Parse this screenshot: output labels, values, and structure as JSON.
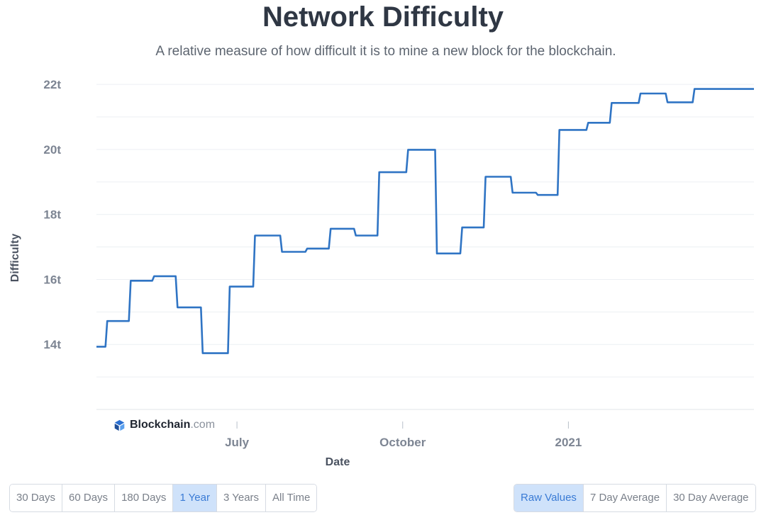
{
  "header": {
    "title": "Network Difficulty",
    "subtitle": "A relative measure of how difficult it is to mine a new block for the blockchain."
  },
  "brand": {
    "name": "Blockchain",
    "tld": ".com"
  },
  "range_buttons": [
    {
      "label": "30 Days",
      "active": false
    },
    {
      "label": "60 Days",
      "active": false
    },
    {
      "label": "180 Days",
      "active": false
    },
    {
      "label": "1 Year",
      "active": true
    },
    {
      "label": "3 Years",
      "active": false
    },
    {
      "label": "All Time",
      "active": false
    }
  ],
  "mode_buttons": [
    {
      "label": "Raw Values",
      "active": true
    },
    {
      "label": "7 Day Average",
      "active": false
    },
    {
      "label": "30 Day Average",
      "active": false
    }
  ],
  "colors": {
    "line": "#2f74c4",
    "grid": "#eceff3",
    "axis_text": "#7d8593",
    "label_text": "#4a5260",
    "active_button": "#cfe2fa"
  },
  "chart_data": {
    "type": "line",
    "title": "Network Difficulty",
    "xlabel": "Date",
    "ylabel": "Difficulty",
    "ylim": [
      12.0,
      22.2
    ],
    "yticks": [
      14,
      16,
      18,
      20,
      22
    ],
    "ytick_labels": [
      "14t",
      "16t",
      "18t",
      "20t",
      "22t"
    ],
    "xlim": [
      "2020-04-14",
      "2021-04-14"
    ],
    "xticks": [
      "2020-07-01",
      "2020-10-01",
      "2021-01-01"
    ],
    "xtick_labels": [
      "July",
      "October",
      "2021"
    ],
    "grid": true,
    "series": [
      {
        "x": [
          "2020-04-14",
          "2020-04-19",
          "2020-04-20",
          "2020-05-02",
          "2020-05-03",
          "2020-05-15",
          "2020-05-16",
          "2020-05-28",
          "2020-05-29",
          "2020-06-11",
          "2020-06-12",
          "2020-06-26",
          "2020-06-27",
          "2020-07-10",
          "2020-07-11",
          "2020-07-25",
          "2020-07-26",
          "2020-08-08",
          "2020-08-09",
          "2020-08-21",
          "2020-08-22",
          "2020-09-04",
          "2020-09-05",
          "2020-09-17",
          "2020-09-18",
          "2020-10-03",
          "2020-10-04",
          "2020-10-19",
          "2020-10-20",
          "2020-11-02",
          "2020-11-03",
          "2020-11-15",
          "2020-11-16",
          "2020-11-30",
          "2020-12-01",
          "2020-12-14",
          "2020-12-15",
          "2020-12-26",
          "2020-12-27",
          "2021-01-11",
          "2021-01-12",
          "2021-01-24",
          "2021-01-25",
          "2021-02-09",
          "2021-02-10",
          "2021-02-24",
          "2021-02-25",
          "2021-03-11",
          "2021-03-12",
          "2021-04-14"
        ],
        "y": [
          13.93,
          13.93,
          14.72,
          14.72,
          15.96,
          15.96,
          16.1,
          16.1,
          15.14,
          15.14,
          13.73,
          13.73,
          15.78,
          15.78,
          17.35,
          17.35,
          16.85,
          16.85,
          16.95,
          16.95,
          17.56,
          17.56,
          17.35,
          17.35,
          19.3,
          19.3,
          19.99,
          19.99,
          16.8,
          16.8,
          17.6,
          17.6,
          19.16,
          19.16,
          18.67,
          18.67,
          18.6,
          18.6,
          20.6,
          20.6,
          20.82,
          20.82,
          21.43,
          21.43,
          21.72,
          21.72,
          21.45,
          21.45,
          21.86,
          21.86
        ]
      }
    ]
  }
}
